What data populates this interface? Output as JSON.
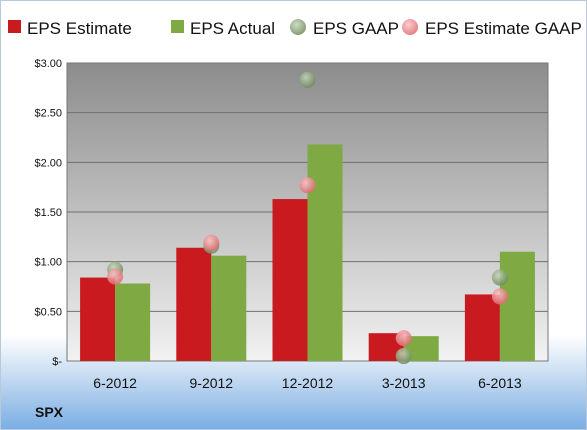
{
  "chart_data": {
    "type": "bar",
    "ticker": "SPX",
    "categories": [
      "6-2012",
      "9-2012",
      "12-2012",
      "3-2013",
      "6-2013"
    ],
    "series": [
      {
        "name": "EPS Estimate",
        "kind": "bar",
        "color": "#c81a1f",
        "values": [
          0.84,
          1.14,
          1.63,
          0.28,
          0.67
        ]
      },
      {
        "name": "EPS Actual",
        "kind": "bar",
        "color": "#7fa943",
        "values": [
          0.78,
          1.06,
          2.18,
          0.25,
          1.1
        ]
      },
      {
        "name": "EPS GAAP",
        "kind": "marker",
        "color": "#7f9a6f",
        "values": [
          0.92,
          1.16,
          2.83,
          0.05,
          0.84
        ]
      },
      {
        "name": "EPS Estimate GAAP",
        "kind": "marker",
        "color": "#e8848a",
        "values": [
          0.85,
          1.19,
          1.77,
          0.23,
          0.65
        ]
      }
    ],
    "yticks": [
      "$-",
      "$0.50",
      "$1.00",
      "$1.50",
      "$2.00",
      "$2.50",
      "$3.00"
    ],
    "ylim": [
      0,
      3
    ],
    "grid": true,
    "legend_position": "top"
  }
}
